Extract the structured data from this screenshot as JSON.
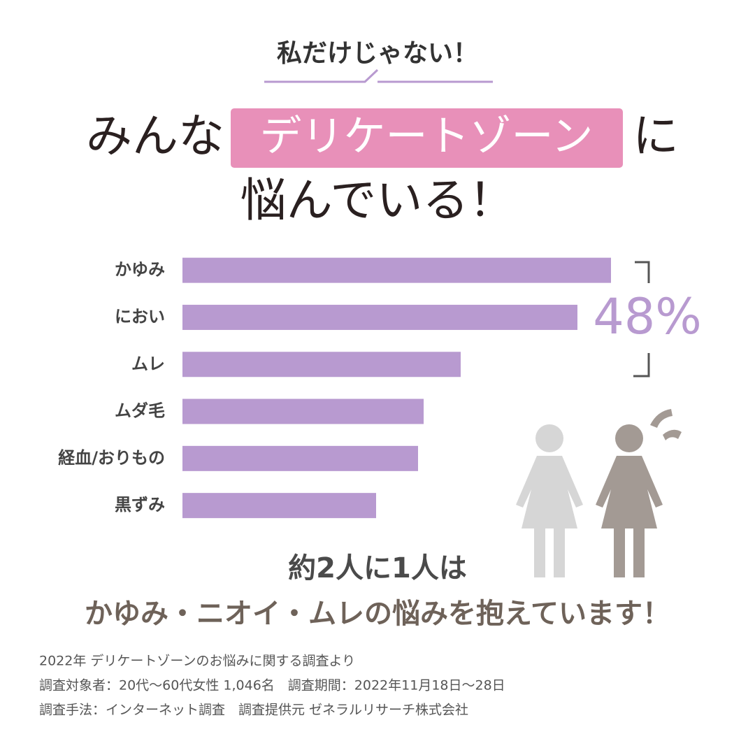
{
  "header": {
    "bubble": "私だけじゃない！",
    "title_pre": "みんな",
    "title_highlight": "デリケートゾーン",
    "title_post": "に",
    "title_line2": "悩んでいる！"
  },
  "chart_data": {
    "type": "bar",
    "orientation": "horizontal",
    "categories": [
      "かゆみ",
      "におい",
      "ムレ",
      "ムダ毛",
      "経血/おりもの",
      "黒ずみ"
    ],
    "values": [
      61.3,
      56.5,
      39.8,
      34.5,
      33.7,
      27.7
    ],
    "color": "#b89ad0",
    "xlim": [
      0,
      70
    ],
    "annotation": "48%"
  },
  "conclusion": {
    "line1": "約2人に1人は",
    "line2": "かゆみ・ニオイ・ムレの悩みを抱えています！"
  },
  "notes": [
    "2022年 デリケートゾーンのお悩みに関する調査より",
    "調査対象者：20代〜60代女性 1,046名　調査期間：2022年11月18日〜28日",
    "調査手法：インターネット調査　調査提供元 ゼネラルリサーチ株式会社"
  ]
}
